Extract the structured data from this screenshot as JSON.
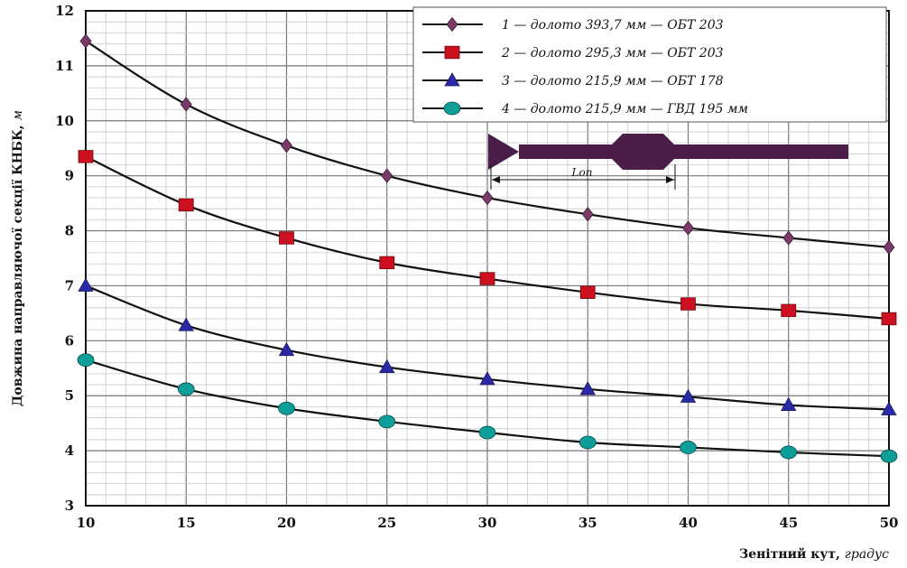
{
  "chart_data": {
    "type": "line",
    "xlabel": "Зенітний кут,",
    "xlabel_unit": "градус",
    "ylabel": "Довжина направляючої секції КНБК,",
    "ylabel_unit": "м",
    "xlim": [
      10,
      50
    ],
    "ylim": [
      3,
      12
    ],
    "xticks": [
      "10",
      "15",
      "20",
      "25",
      "30",
      "35",
      "40",
      "45",
      "50"
    ],
    "yticks": [
      "3",
      "4",
      "5",
      "6",
      "7",
      "8",
      "9",
      "10",
      "11",
      "12"
    ],
    "grid": true,
    "legend_position": "top-right",
    "x": [
      10,
      15,
      20,
      25,
      30,
      35,
      40,
      45,
      50
    ],
    "series": [
      {
        "name": "1 — долото 393,7 мм — ОБТ 203",
        "marker": "diamond",
        "color": "#7a3a6a",
        "values": [
          11.45,
          10.3,
          9.55,
          9.0,
          8.6,
          8.3,
          8.05,
          7.87,
          7.7
        ]
      },
      {
        "name": "2 — долото 295,3 мм — ОБТ 203",
        "marker": "square",
        "color": "#cc1020",
        "values": [
          9.35,
          8.47,
          7.87,
          7.42,
          7.13,
          6.88,
          6.67,
          6.55,
          6.4
        ]
      },
      {
        "name": "3 — долото 215,9 мм — ОБТ 178",
        "marker": "triangle",
        "color": "#2a2aa8",
        "values": [
          7.0,
          6.28,
          5.83,
          5.52,
          5.3,
          5.12,
          4.98,
          4.83,
          4.75
        ]
      },
      {
        "name": "4 — долото 215,9 мм — ГВД 195 мм",
        "marker": "circle",
        "color": "#0e9e9a",
        "values": [
          5.65,
          5.12,
          4.77,
          4.53,
          4.33,
          4.15,
          4.06,
          3.97,
          3.9
        ]
      }
    ],
    "annotation": {
      "label": "Lоп"
    }
  }
}
